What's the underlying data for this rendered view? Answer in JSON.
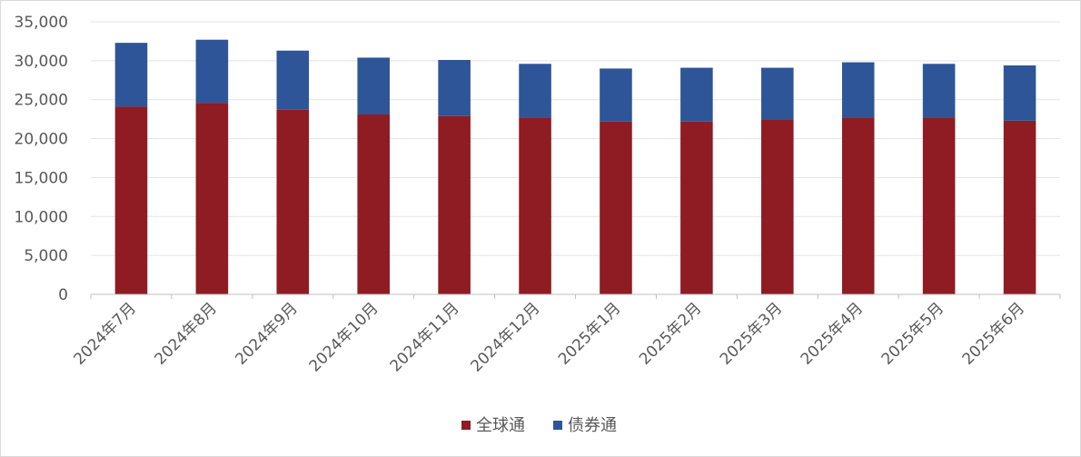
{
  "chart_data": {
    "type": "bar",
    "stacked": true,
    "categories": [
      "2024年7月",
      "2024年8月",
      "2024年9月",
      "2024年10月",
      "2024年11月",
      "2024年12月",
      "2025年1月",
      "2025年2月",
      "2025年3月",
      "2025年4月",
      "2025年5月",
      "2025年6月"
    ],
    "series": [
      {
        "name": "全球通",
        "color": "#8e1c22",
        "values": [
          24100,
          24600,
          23700,
          23100,
          22900,
          22700,
          22200,
          22200,
          22400,
          22700,
          22700,
          22300
        ]
      },
      {
        "name": "债券通",
        "color": "#2e5597",
        "values": [
          8200,
          8100,
          7600,
          7300,
          7200,
          6900,
          6800,
          6900,
          6700,
          7100,
          6900,
          7100
        ]
      }
    ],
    "ylim": [
      0,
      35000
    ],
    "yticks": [
      0,
      5000,
      10000,
      15000,
      20000,
      25000,
      30000,
      35000
    ],
    "ytick_labels": [
      "0",
      "5,000",
      "10,000",
      "15,000",
      "20,000",
      "25,000",
      "30,000",
      "35,000"
    ],
    "grid": true,
    "legend_position": "bottom"
  }
}
